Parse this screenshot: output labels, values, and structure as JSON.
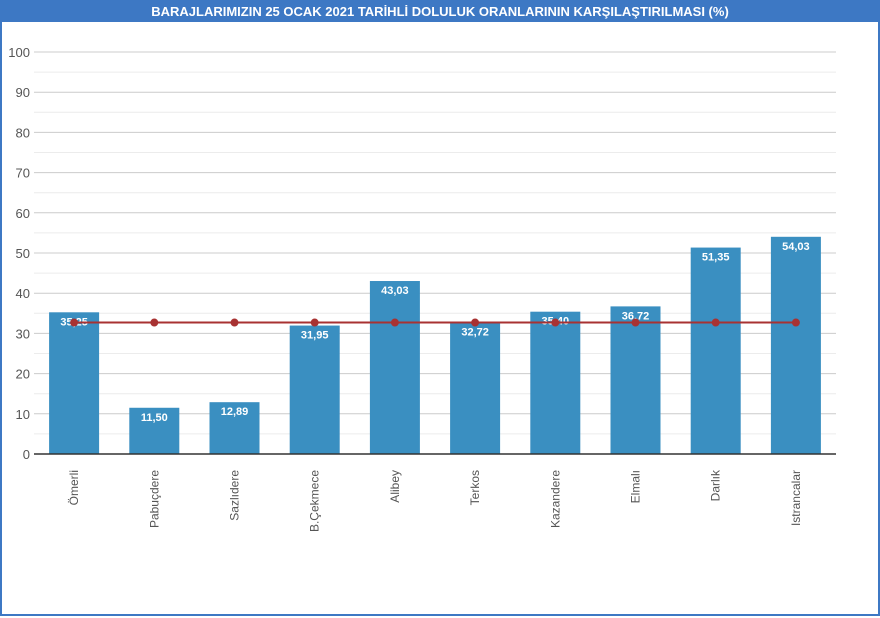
{
  "chart_data": {
    "type": "bar",
    "title": "BARAJLARIMIZIN 25 OCAK 2021 TARİHLİ DOLULUK ORANLARININ KARŞILAŞTIRILMASI (%)",
    "xlabel": "",
    "ylabel": "",
    "ylim": [
      0,
      100
    ],
    "yticks": [
      0,
      10,
      20,
      30,
      40,
      50,
      60,
      70,
      80,
      90,
      100
    ],
    "grid": true,
    "categories": [
      "Ömerli",
      "Pabuçdere",
      "Sazlıdere",
      "B.Çekmece",
      "Alibey",
      "Terkos",
      "Kazandere",
      "Elmalı",
      "Darlık",
      "Istrancalar"
    ],
    "values": [
      35.25,
      11.5,
      12.89,
      31.95,
      43.03,
      32.72,
      35.4,
      36.72,
      51.35,
      54.03
    ],
    "value_labels": [
      "35,25",
      "11,50",
      "12,89",
      "31,95",
      "43,03",
      "32,72",
      "35,40",
      "36,72",
      "51,35",
      "54,03"
    ],
    "reference_line": {
      "value": 32.7,
      "color": "#a83232"
    },
    "bar_color": "#3a8fc1"
  }
}
